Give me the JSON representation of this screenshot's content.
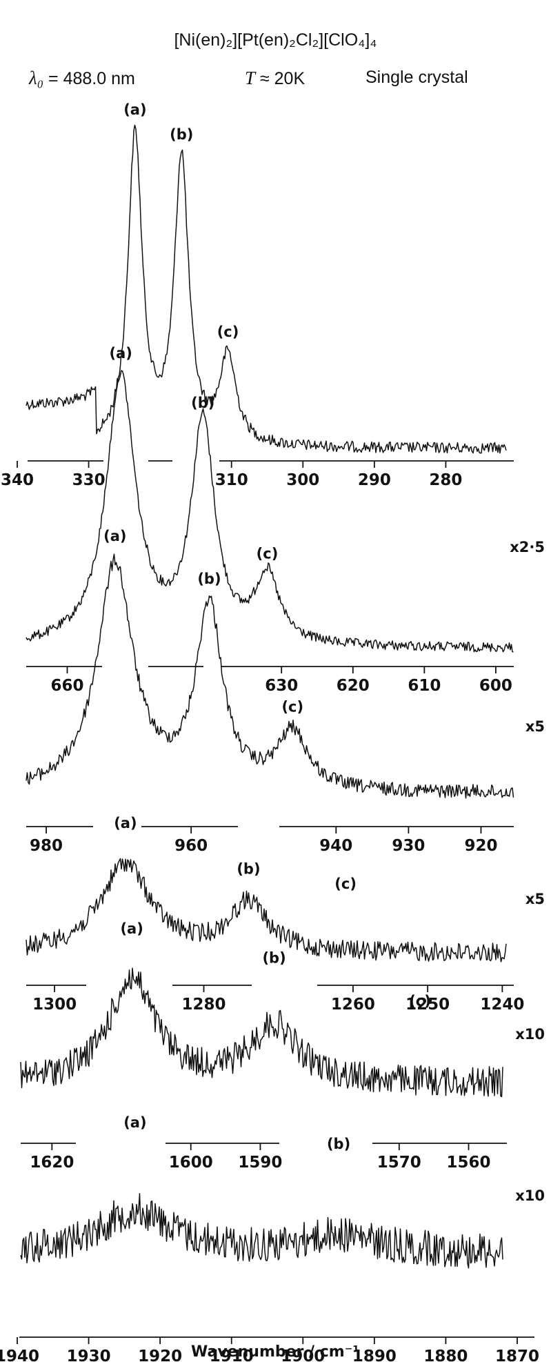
{
  "figure": {
    "title": "[Ni(en)₂][Pt(en)₂Cl₂][ClO₄]₄",
    "excitation_symbol": "λ₀",
    "excitation": "= 488.0 nm",
    "temperature_symbol": "T",
    "temperature": "≈ 20K",
    "sample": "Single crystal"
  },
  "chart_data": [
    {
      "type": "line",
      "panel": "340-270",
      "x_ticks": [
        340,
        330,
        310,
        300,
        290,
        280
      ],
      "x_range": [
        340,
        270
      ],
      "scale_factor": "",
      "peaks": [
        {
          "label": "(a)",
          "x": 323.5,
          "height": 1.0,
          "width": 1.2
        },
        {
          "label": "(b)",
          "x": 317.0,
          "height": 0.92,
          "width": 1.2
        },
        {
          "label": "(c)",
          "x": 310.5,
          "height": 0.28,
          "width": 1.4
        }
      ]
    },
    {
      "type": "line",
      "panel": "660-600",
      "x_ticks": [
        660,
        630,
        620,
        610,
        600
      ],
      "x_range": [
        667,
        597
      ],
      "scale_factor": "x2·5",
      "peaks": [
        {
          "label": "(a)",
          "x": 652.5,
          "height": 1.0,
          "width": 2.5
        },
        {
          "label": "(b)",
          "x": 641.0,
          "height": 0.82,
          "width": 2.0
        },
        {
          "label": "(c)",
          "x": 632.0,
          "height": 0.25,
          "width": 2.0
        }
      ]
    },
    {
      "type": "line",
      "panel": "980-920",
      "x_ticks": [
        980,
        960,
        940,
        930,
        920
      ],
      "x_range": [
        984,
        915
      ],
      "scale_factor": "x5",
      "peaks": [
        {
          "label": "(a)",
          "x": 970.5,
          "height": 1.0,
          "width": 3.0
        },
        {
          "label": "(b)",
          "x": 957.5,
          "height": 0.8,
          "width": 2.2
        },
        {
          "label": "(c)",
          "x": 946.0,
          "height": 0.25,
          "width": 2.5
        }
      ]
    },
    {
      "type": "line",
      "panel": "1300-1240",
      "x_ticks": [
        1300,
        1280,
        1260,
        1250,
        1240
      ],
      "x_range": [
        1305,
        1238
      ],
      "scale_factor": "x5",
      "peaks": [
        {
          "label": "(a)",
          "x": 1290.5,
          "height": 1.0,
          "width": 4.0
        },
        {
          "label": "(b)",
          "x": 1274.0,
          "height": 0.55,
          "width": 3.0
        },
        {
          "label": "(c)",
          "x": 1261.0,
          "height": 0.0,
          "width": 3.0
        }
      ]
    },
    {
      "type": "line",
      "panel": "1620-1560",
      "x_ticks": [
        1620,
        1600,
        1590,
        1570,
        1560
      ],
      "x_range": [
        1625,
        1553
      ],
      "scale_factor": "x10",
      "peaks": [
        {
          "label": "(a)",
          "x": 1608.5,
          "height": 1.0,
          "width": 4.0
        },
        {
          "label": "(b)",
          "x": 1588.0,
          "height": 0.55,
          "width": 4.0
        },
        {
          "label": "(c)",
          "x": 1567.0,
          "height": 0.0,
          "width": 4.0
        }
      ]
    },
    {
      "type": "line",
      "panel": "1940-1870",
      "x_ticks": [
        1940,
        1930,
        1920,
        1910,
        1900,
        1890,
        1880,
        1870
      ],
      "x_range": [
        1940,
        1870
      ],
      "scale_factor": "x10",
      "xlabel": "Wavenumber / cm⁻¹",
      "peaks": [
        {
          "label": "(a)",
          "x": 1923.5,
          "height": 1.0,
          "width": 6.0
        },
        {
          "label": "(b)",
          "x": 1895.0,
          "height": 0.4,
          "width": 6.0
        }
      ]
    }
  ]
}
